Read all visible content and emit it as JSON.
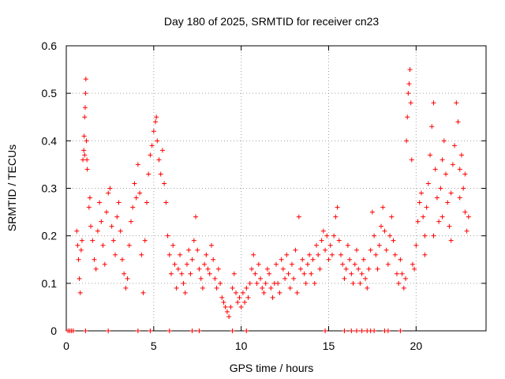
{
  "chart_data": {
    "type": "scatter",
    "title": "Day 180 of 2025, SRMTID for receiver cn23",
    "xlabel": "GPS time / hours",
    "ylabel": "SRMTID / TECUs",
    "xlim": [
      0,
      24
    ],
    "ylim": [
      0,
      0.6
    ],
    "grid": true,
    "x_ticks": [
      0,
      5,
      10,
      15,
      20
    ],
    "x_tick_labels": [
      "0",
      "5",
      "10",
      "15",
      "20"
    ],
    "y_ticks": [
      0,
      0.1,
      0.2,
      0.3,
      0.4,
      0.5,
      0.6
    ],
    "y_tick_labels": [
      "0",
      "0.1",
      "0.2",
      "0.3",
      "0.4",
      "0.5",
      "0.6"
    ],
    "marker": "+",
    "color": "#ff0000",
    "series": [
      {
        "name": "SRMTID",
        "points": [
          [
            0.1,
            0.0
          ],
          [
            0.2,
            0.0
          ],
          [
            0.3,
            0.0
          ],
          [
            0.4,
            0.0
          ],
          [
            1.1,
            0.0
          ],
          [
            2.4,
            0.0
          ],
          [
            4.1,
            0.0
          ],
          [
            4.8,
            0.0
          ],
          [
            5.9,
            0.0
          ],
          [
            7.2,
            0.0
          ],
          [
            7.6,
            0.0
          ],
          [
            9.5,
            0.0
          ],
          [
            10.3,
            0.0
          ],
          [
            14.8,
            0.0
          ],
          [
            15.9,
            0.0
          ],
          [
            16.3,
            0.0
          ],
          [
            16.6,
            0.0
          ],
          [
            16.9,
            0.0
          ],
          [
            17.2,
            0.0
          ],
          [
            17.4,
            0.0
          ],
          [
            17.6,
            0.0
          ],
          [
            18.2,
            0.0
          ],
          [
            18.4,
            0.0
          ],
          [
            19.1,
            0.0
          ],
          [
            0.95,
            0.36
          ],
          [
            1.0,
            0.38
          ],
          [
            1.02,
            0.41
          ],
          [
            1.05,
            0.45
          ],
          [
            1.08,
            0.47
          ],
          [
            1.1,
            0.5
          ],
          [
            1.12,
            0.53
          ],
          [
            1.15,
            0.4
          ],
          [
            1.18,
            0.36
          ],
          [
            1.2,
            0.34
          ],
          [
            1.05,
            0.37
          ],
          [
            0.6,
            0.21
          ],
          [
            0.65,
            0.18
          ],
          [
            0.7,
            0.15
          ],
          [
            0.75,
            0.11
          ],
          [
            0.8,
            0.08
          ],
          [
            0.85,
            0.17
          ],
          [
            0.9,
            0.19
          ],
          [
            1.3,
            0.26
          ],
          [
            1.35,
            0.28
          ],
          [
            1.4,
            0.22
          ],
          [
            1.5,
            0.19
          ],
          [
            1.6,
            0.15
          ],
          [
            1.7,
            0.13
          ],
          [
            1.8,
            0.21
          ],
          [
            1.9,
            0.27
          ],
          [
            2.0,
            0.23
          ],
          [
            2.1,
            0.18
          ],
          [
            2.2,
            0.14
          ],
          [
            2.3,
            0.25
          ],
          [
            2.4,
            0.29
          ],
          [
            2.5,
            0.3
          ],
          [
            2.6,
            0.22
          ],
          [
            2.7,
            0.19
          ],
          [
            2.8,
            0.16
          ],
          [
            2.9,
            0.24
          ],
          [
            3.0,
            0.27
          ],
          [
            3.1,
            0.21
          ],
          [
            3.2,
            0.15
          ],
          [
            3.3,
            0.12
          ],
          [
            3.4,
            0.09
          ],
          [
            3.5,
            0.11
          ],
          [
            3.6,
            0.18
          ],
          [
            3.7,
            0.23
          ],
          [
            3.8,
            0.26
          ],
          [
            3.9,
            0.31
          ],
          [
            4.0,
            0.28
          ],
          [
            4.1,
            0.35
          ],
          [
            4.2,
            0.29
          ],
          [
            4.3,
            0.16
          ],
          [
            4.4,
            0.08
          ],
          [
            4.5,
            0.19
          ],
          [
            4.6,
            0.27
          ],
          [
            4.7,
            0.33
          ],
          [
            4.8,
            0.37
          ],
          [
            4.9,
            0.39
          ],
          [
            5.0,
            0.42
          ],
          [
            5.1,
            0.44
          ],
          [
            5.15,
            0.45
          ],
          [
            5.2,
            0.4
          ],
          [
            5.3,
            0.36
          ],
          [
            5.4,
            0.33
          ],
          [
            5.5,
            0.38
          ],
          [
            5.6,
            0.31
          ],
          [
            5.7,
            0.27
          ],
          [
            5.8,
            0.2
          ],
          [
            5.9,
            0.16
          ],
          [
            6.0,
            0.12
          ],
          [
            6.1,
            0.18
          ],
          [
            6.2,
            0.14
          ],
          [
            6.3,
            0.09
          ],
          [
            6.4,
            0.13
          ],
          [
            6.5,
            0.16
          ],
          [
            6.6,
            0.12
          ],
          [
            6.7,
            0.1
          ],
          [
            6.8,
            0.08
          ],
          [
            6.9,
            0.14
          ],
          [
            7.0,
            0.17
          ],
          [
            7.1,
            0.12
          ],
          [
            7.2,
            0.15
          ],
          [
            7.3,
            0.19
          ],
          [
            7.4,
            0.24
          ],
          [
            7.5,
            0.17
          ],
          [
            7.6,
            0.13
          ],
          [
            7.7,
            0.11
          ],
          [
            7.8,
            0.09
          ],
          [
            7.9,
            0.14
          ],
          [
            8.0,
            0.16
          ],
          [
            8.1,
            0.13
          ],
          [
            8.2,
            0.12
          ],
          [
            8.3,
            0.18
          ],
          [
            8.4,
            0.15
          ],
          [
            8.5,
            0.11
          ],
          [
            8.6,
            0.09
          ],
          [
            8.7,
            0.13
          ],
          [
            8.8,
            0.1
          ],
          [
            8.9,
            0.07
          ],
          [
            9.0,
            0.06
          ],
          [
            9.1,
            0.05
          ],
          [
            9.2,
            0.04
          ],
          [
            9.3,
            0.03
          ],
          [
            9.4,
            0.05
          ],
          [
            9.5,
            0.09
          ],
          [
            9.6,
            0.12
          ],
          [
            9.7,
            0.08
          ],
          [
            9.8,
            0.06
          ],
          [
            9.9,
            0.07
          ],
          [
            10.0,
            0.05
          ],
          [
            10.1,
            0.08
          ],
          [
            10.2,
            0.06
          ],
          [
            10.3,
            0.09
          ],
          [
            10.4,
            0.07
          ],
          [
            10.5,
            0.1
          ],
          [
            10.6,
            0.13
          ],
          [
            10.7,
            0.16
          ],
          [
            10.8,
            0.12
          ],
          [
            10.9,
            0.1
          ],
          [
            11.0,
            0.14
          ],
          [
            11.1,
            0.11
          ],
          [
            11.2,
            0.09
          ],
          [
            11.3,
            0.08
          ],
          [
            11.4,
            0.1
          ],
          [
            11.5,
            0.13
          ],
          [
            11.6,
            0.12
          ],
          [
            11.7,
            0.09
          ],
          [
            11.8,
            0.07
          ],
          [
            11.9,
            0.1
          ],
          [
            12.0,
            0.14
          ],
          [
            12.1,
            0.1
          ],
          [
            12.2,
            0.08
          ],
          [
            12.3,
            0.15
          ],
          [
            12.4,
            0.13
          ],
          [
            12.5,
            0.11
          ],
          [
            12.6,
            0.16
          ],
          [
            12.7,
            0.12
          ],
          [
            12.8,
            0.09
          ],
          [
            12.9,
            0.14
          ],
          [
            13.0,
            0.11
          ],
          [
            13.1,
            0.17
          ],
          [
            13.2,
            0.08
          ],
          [
            13.3,
            0.24
          ],
          [
            13.4,
            0.13
          ],
          [
            13.5,
            0.15
          ],
          [
            13.6,
            0.12
          ],
          [
            13.7,
            0.1
          ],
          [
            13.8,
            0.14
          ],
          [
            13.9,
            0.16
          ],
          [
            14.0,
            0.12
          ],
          [
            14.1,
            0.15
          ],
          [
            14.2,
            0.1
          ],
          [
            14.3,
            0.18
          ],
          [
            14.4,
            0.16
          ],
          [
            14.5,
            0.13
          ],
          [
            14.6,
            0.19
          ],
          [
            14.7,
            0.21
          ],
          [
            14.8,
            0.17
          ],
          [
            14.9,
            0.2
          ],
          [
            15.0,
            0.15
          ],
          [
            15.1,
            0.18
          ],
          [
            15.2,
            0.16
          ],
          [
            15.3,
            0.2
          ],
          [
            15.4,
            0.24
          ],
          [
            15.5,
            0.26
          ],
          [
            15.6,
            0.19
          ],
          [
            15.7,
            0.16
          ],
          [
            15.8,
            0.14
          ],
          [
            15.9,
            0.11
          ],
          [
            16.0,
            0.13
          ],
          [
            16.1,
            0.18
          ],
          [
            16.2,
            0.15
          ],
          [
            16.3,
            0.12
          ],
          [
            16.4,
            0.1
          ],
          [
            16.5,
            0.14
          ],
          [
            16.6,
            0.17
          ],
          [
            16.7,
            0.13
          ],
          [
            16.8,
            0.1
          ],
          [
            16.9,
            0.12
          ],
          [
            17.0,
            0.15
          ],
          [
            17.1,
            0.11
          ],
          [
            17.2,
            0.09
          ],
          [
            17.3,
            0.13
          ],
          [
            17.4,
            0.17
          ],
          [
            17.5,
            0.25
          ],
          [
            17.6,
            0.2
          ],
          [
            17.7,
            0.16
          ],
          [
            17.8,
            0.13
          ],
          [
            17.9,
            0.18
          ],
          [
            18.0,
            0.22
          ],
          [
            18.1,
            0.26
          ],
          [
            18.2,
            0.21
          ],
          [
            18.3,
            0.17
          ],
          [
            18.4,
            0.14
          ],
          [
            18.5,
            0.2
          ],
          [
            18.6,
            0.24
          ],
          [
            18.7,
            0.19
          ],
          [
            18.8,
            0.16
          ],
          [
            18.9,
            0.12
          ],
          [
            19.0,
            0.1
          ],
          [
            19.1,
            0.15
          ],
          [
            19.2,
            0.12
          ],
          [
            19.3,
            0.09
          ],
          [
            19.4,
            0.11
          ],
          [
            19.45,
            0.4
          ],
          [
            19.5,
            0.45
          ],
          [
            19.55,
            0.5
          ],
          [
            19.6,
            0.52
          ],
          [
            19.65,
            0.55
          ],
          [
            19.7,
            0.48
          ],
          [
            19.75,
            0.36
          ],
          [
            19.8,
            0.14
          ],
          [
            19.9,
            0.13
          ],
          [
            20.0,
            0.18
          ],
          [
            20.1,
            0.23
          ],
          [
            20.2,
            0.27
          ],
          [
            20.3,
            0.29
          ],
          [
            20.4,
            0.24
          ],
          [
            20.5,
            0.2
          ],
          [
            20.6,
            0.26
          ],
          [
            20.7,
            0.31
          ],
          [
            20.8,
            0.37
          ],
          [
            20.9,
            0.43
          ],
          [
            21.0,
            0.48
          ],
          [
            21.1,
            0.34
          ],
          [
            21.2,
            0.28
          ],
          [
            21.3,
            0.23
          ],
          [
            21.4,
            0.3
          ],
          [
            21.5,
            0.36
          ],
          [
            21.6,
            0.4
          ],
          [
            21.7,
            0.33
          ],
          [
            21.8,
            0.27
          ],
          [
            21.9,
            0.22
          ],
          [
            22.0,
            0.29
          ],
          [
            22.1,
            0.35
          ],
          [
            22.2,
            0.39
          ],
          [
            22.3,
            0.48
          ],
          [
            22.4,
            0.44
          ],
          [
            22.5,
            0.34
          ],
          [
            22.6,
            0.37
          ],
          [
            22.7,
            0.3
          ],
          [
            22.8,
            0.25
          ],
          [
            22.9,
            0.21
          ],
          [
            23.0,
            0.24
          ],
          [
            20.5,
            0.16
          ],
          [
            21.0,
            0.2
          ],
          [
            21.5,
            0.24
          ],
          [
            22.0,
            0.19
          ],
          [
            22.5,
            0.28
          ],
          [
            22.8,
            0.33
          ]
        ]
      }
    ]
  }
}
